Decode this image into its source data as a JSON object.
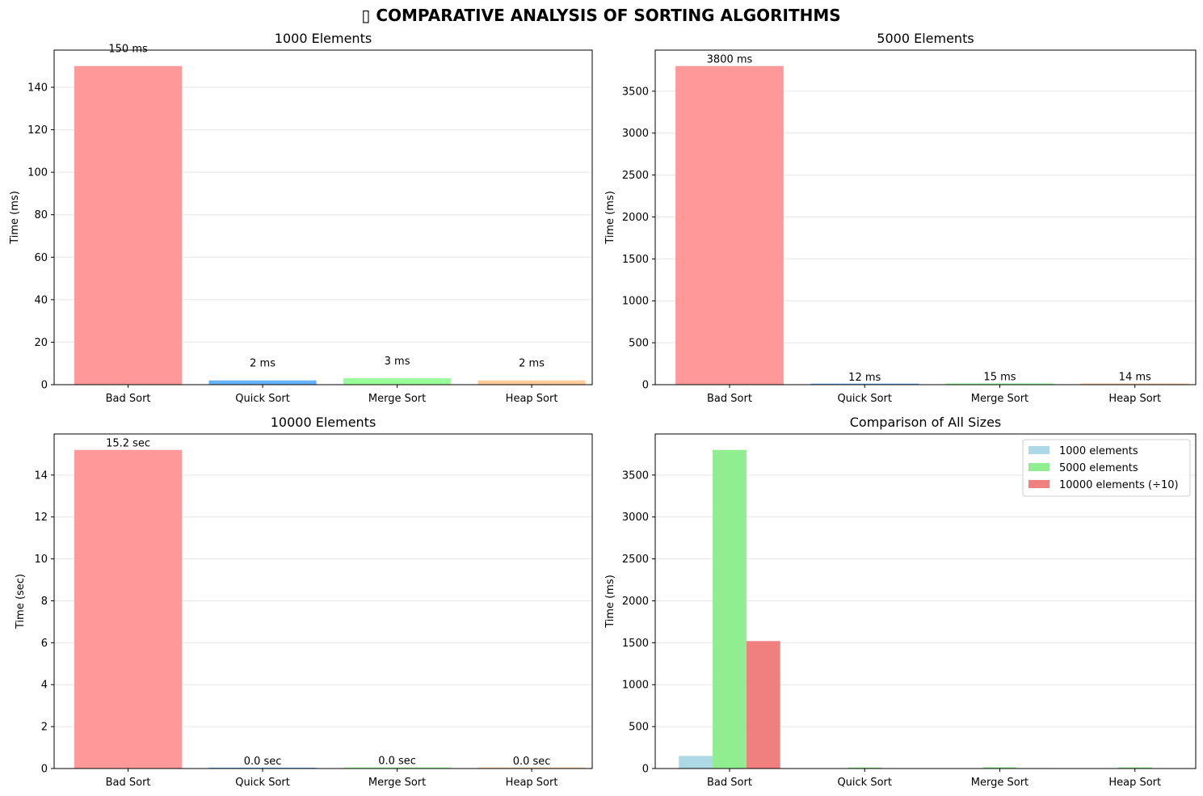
{
  "figure": {
    "title": "▯ COMPARATIVE ANALYSIS OF SORTING ALGORITHMS"
  },
  "colors": {
    "bad_sort": "#ff9999",
    "quick_sort": "#66b3ff",
    "merge_sort": "#99ff99",
    "heap_sort": "#ffcc99",
    "series_1000": "#add8e6",
    "series_5000": "#90ee90",
    "series_10000": "#f08080",
    "grid": "#e6e6e6"
  },
  "chart_data": [
    {
      "type": "bar",
      "title": "1000 Elements",
      "ylabel": "Time (ms)",
      "xlabel": "",
      "categories": [
        "Bad Sort",
        "Quick Sort",
        "Merge Sort",
        "Heap Sort"
      ],
      "values": [
        150,
        2,
        3,
        2
      ],
      "labels": [
        "150 ms",
        "2 ms",
        "3 ms",
        "2 ms"
      ],
      "ylim": [
        0,
        157.5
      ],
      "yticks": [
        0,
        20,
        40,
        60,
        80,
        100,
        120,
        140
      ],
      "grid": "y"
    },
    {
      "type": "bar",
      "title": "5000 Elements",
      "ylabel": "Time (ms)",
      "xlabel": "",
      "categories": [
        "Bad Sort",
        "Quick Sort",
        "Merge Sort",
        "Heap Sort"
      ],
      "values": [
        3800,
        12,
        15,
        14
      ],
      "labels": [
        "3800 ms",
        "12 ms",
        "15 ms",
        "14 ms"
      ],
      "ylim": [
        0,
        3990
      ],
      "yticks": [
        0,
        500,
        1000,
        1500,
        2000,
        2500,
        3000,
        3500
      ],
      "grid": "y"
    },
    {
      "type": "bar",
      "title": "10000 Elements",
      "ylabel": "Time (sec)",
      "xlabel": "",
      "categories": [
        "Bad Sort",
        "Quick Sort",
        "Merge Sort",
        "Heap Sort"
      ],
      "values": [
        15.2,
        0.04,
        0.05,
        0.045
      ],
      "labels": [
        "15.2 sec",
        "0.0 sec",
        "0.0 sec",
        "0.0 sec"
      ],
      "ylim": [
        0,
        15.96
      ],
      "yticks": [
        0,
        2,
        4,
        6,
        8,
        10,
        12,
        14
      ],
      "grid": "y"
    },
    {
      "type": "bar",
      "title": "Comparison of All Sizes",
      "ylabel": "Time (ms)",
      "xlabel": "",
      "categories": [
        "Bad Sort",
        "Quick Sort",
        "Merge Sort",
        "Heap Sort"
      ],
      "series": [
        {
          "name": "1000 elements",
          "values": [
            150,
            2,
            3,
            2
          ]
        },
        {
          "name": "5000 elements",
          "values": [
            3800,
            12,
            15,
            14
          ]
        },
        {
          "name": "10000 elements (÷10)",
          "values": [
            1520,
            4,
            5,
            4.5
          ]
        }
      ],
      "ylim": [
        0,
        3990
      ],
      "yticks": [
        0,
        500,
        1000,
        1500,
        2000,
        2500,
        3000,
        3500
      ],
      "legend": "top-right",
      "grid": "y"
    }
  ]
}
